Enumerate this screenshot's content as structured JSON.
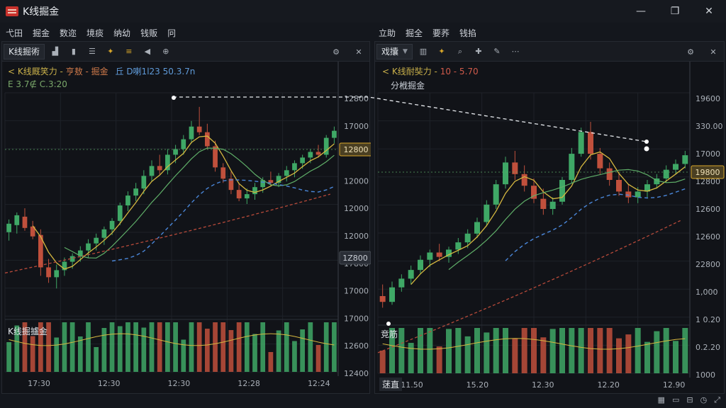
{
  "window": {
    "title": "K线掘金",
    "minimize": "—",
    "maximize": "❐",
    "close": "✕"
  },
  "menu_left": [
    "弋田",
    "掘金",
    "数迩",
    "境痰",
    "纳幼",
    "钱贩",
    "冋"
  ],
  "menu_right": [
    "立助",
    "掘全",
    "要荞",
    "钱掐"
  ],
  "left_panel": {
    "tab_label": "K线掘術",
    "legend_title": "< K线厩笑力 - ",
    "legend_mid": "亨敖 - 掘金",
    "legend_vals": "丘 D喇1l23 50.3.7n",
    "legend_sub": "E 3.7∉ C.3:20",
    "volume_label": "K线掘攎金",
    "price_ticks": [
      "12800",
      "17000",
      "12800",
      "12000",
      "12000",
      "12000",
      "17800",
      "17000",
      "17000",
      "12600",
      "12400"
    ],
    "current_price_tag": "12800",
    "marker_tag": "1Z800",
    "time_ticks": [
      "17:30",
      "12:30",
      "12:30",
      "12:28",
      "12:24"
    ]
  },
  "right_panel": {
    "tab_label": "戏攮",
    "legend_title": "< K线耐奘力 - ",
    "legend_vals": "10 - 5.70",
    "legend_sub": "分栰掘金",
    "volume_label": "竞筋",
    "price_ticks": [
      "19600",
      "330.00",
      "17000",
      "12800",
      "12600",
      "12600",
      "22800",
      "1,000",
      "1 0.20",
      "0.2.20",
      "1000"
    ],
    "current_price_tag": "19800",
    "time_ticks": [
      "11.50",
      "15.20",
      "12.30",
      "12.20",
      "12.90"
    ],
    "bottom_label": "蒁直"
  },
  "colors": {
    "up": "#3fa866",
    "down": "#c0503c",
    "ma_yellow": "#d6b840",
    "ma_green": "#5fae68",
    "ma_blue": "#4a86d8",
    "ma_red": "#b84a3a",
    "accent": "#d9a72a",
    "tag_bg": "#3a3a2a"
  },
  "chart_data": [
    {
      "type": "candlestick",
      "title": "K线厩笑力",
      "ylim": [
        11600,
        13200
      ],
      "candles": [
        {
          "o": 12210,
          "h": 12300,
          "l": 12150,
          "c": 12270
        },
        {
          "o": 12260,
          "h": 12350,
          "l": 12200,
          "c": 12330
        },
        {
          "o": 12320,
          "h": 12380,
          "l": 12220,
          "c": 12240
        },
        {
          "o": 12250,
          "h": 12290,
          "l": 12160,
          "c": 12180
        },
        {
          "o": 12190,
          "h": 12230,
          "l": 11900,
          "c": 11960
        },
        {
          "o": 11960,
          "h": 12020,
          "l": 11850,
          "c": 11890
        },
        {
          "o": 11890,
          "h": 11980,
          "l": 11810,
          "c": 11940
        },
        {
          "o": 11940,
          "h": 12030,
          "l": 11900,
          "c": 12000
        },
        {
          "o": 12000,
          "h": 12060,
          "l": 11950,
          "c": 12040
        },
        {
          "o": 12040,
          "h": 12110,
          "l": 12000,
          "c": 12080
        },
        {
          "o": 12080,
          "h": 12160,
          "l": 12030,
          "c": 12130
        },
        {
          "o": 12130,
          "h": 12200,
          "l": 12080,
          "c": 12170
        },
        {
          "o": 12170,
          "h": 12250,
          "l": 12120,
          "c": 12230
        },
        {
          "o": 12230,
          "h": 12310,
          "l": 12190,
          "c": 12290
        },
        {
          "o": 12290,
          "h": 12420,
          "l": 12260,
          "c": 12400
        },
        {
          "o": 12400,
          "h": 12500,
          "l": 12360,
          "c": 12470
        },
        {
          "o": 12470,
          "h": 12560,
          "l": 12430,
          "c": 12520
        },
        {
          "o": 12520,
          "h": 12650,
          "l": 12480,
          "c": 12610
        },
        {
          "o": 12610,
          "h": 12720,
          "l": 12570,
          "c": 12680
        },
        {
          "o": 12680,
          "h": 12760,
          "l": 12620,
          "c": 12650
        },
        {
          "o": 12650,
          "h": 12800,
          "l": 12620,
          "c": 12760
        },
        {
          "o": 12760,
          "h": 12830,
          "l": 12700,
          "c": 12800
        },
        {
          "o": 12800,
          "h": 12900,
          "l": 12760,
          "c": 12870
        },
        {
          "o": 12870,
          "h": 13000,
          "l": 12840,
          "c": 12960
        },
        {
          "o": 12960,
          "h": 13100,
          "l": 12900,
          "c": 12920
        },
        {
          "o": 12920,
          "h": 12980,
          "l": 12800,
          "c": 12820
        },
        {
          "o": 12820,
          "h": 12860,
          "l": 12640,
          "c": 12670
        },
        {
          "o": 12670,
          "h": 12700,
          "l": 12560,
          "c": 12590
        },
        {
          "o": 12590,
          "h": 12640,
          "l": 12480,
          "c": 12510
        },
        {
          "o": 12510,
          "h": 12560,
          "l": 12430,
          "c": 12450
        },
        {
          "o": 12450,
          "h": 12520,
          "l": 12410,
          "c": 12480
        },
        {
          "o": 12480,
          "h": 12560,
          "l": 12440,
          "c": 12530
        },
        {
          "o": 12530,
          "h": 12600,
          "l": 12490,
          "c": 12580
        },
        {
          "o": 12580,
          "h": 12640,
          "l": 12540,
          "c": 12560
        },
        {
          "o": 12560,
          "h": 12630,
          "l": 12530,
          "c": 12610
        },
        {
          "o": 12610,
          "h": 12680,
          "l": 12570,
          "c": 12650
        },
        {
          "o": 12650,
          "h": 12720,
          "l": 12600,
          "c": 12700
        },
        {
          "o": 12700,
          "h": 12760,
          "l": 12660,
          "c": 12740
        },
        {
          "o": 12740,
          "h": 12800,
          "l": 12700,
          "c": 12780
        },
        {
          "o": 12780,
          "h": 12830,
          "l": 12740,
          "c": 12760
        },
        {
          "o": 12760,
          "h": 12900,
          "l": 12740,
          "c": 12880
        },
        {
          "o": 12880,
          "h": 12960,
          "l": 12840,
          "c": 12930
        }
      ]
    },
    {
      "type": "candlestick",
      "title": "K线耐奘力",
      "ylim": [
        11600,
        13200
      ],
      "candles": [
        {
          "o": 11800,
          "h": 11880,
          "l": 11720,
          "c": 11760
        },
        {
          "o": 11760,
          "h": 11900,
          "l": 11740,
          "c": 11860
        },
        {
          "o": 11860,
          "h": 11950,
          "l": 11830,
          "c": 11920
        },
        {
          "o": 11920,
          "h": 12010,
          "l": 11880,
          "c": 11980
        },
        {
          "o": 11980,
          "h": 12080,
          "l": 11950,
          "c": 12050
        },
        {
          "o": 12050,
          "h": 12120,
          "l": 12000,
          "c": 12100
        },
        {
          "o": 12100,
          "h": 12160,
          "l": 12040,
          "c": 12070
        },
        {
          "o": 12070,
          "h": 12140,
          "l": 12030,
          "c": 12120
        },
        {
          "o": 12120,
          "h": 12200,
          "l": 12090,
          "c": 12170
        },
        {
          "o": 12170,
          "h": 12260,
          "l": 12130,
          "c": 12230
        },
        {
          "o": 12230,
          "h": 12340,
          "l": 12200,
          "c": 12310
        },
        {
          "o": 12310,
          "h": 12460,
          "l": 12280,
          "c": 12430
        },
        {
          "o": 12430,
          "h": 12600,
          "l": 12400,
          "c": 12570
        },
        {
          "o": 12570,
          "h": 12760,
          "l": 12540,
          "c": 12720
        },
        {
          "o": 12720,
          "h": 12800,
          "l": 12600,
          "c": 12640
        },
        {
          "o": 12640,
          "h": 12700,
          "l": 12520,
          "c": 12560
        },
        {
          "o": 12560,
          "h": 12610,
          "l": 12440,
          "c": 12470
        },
        {
          "o": 12470,
          "h": 12540,
          "l": 12360,
          "c": 12400
        },
        {
          "o": 12400,
          "h": 12480,
          "l": 12360,
          "c": 12450
        },
        {
          "o": 12450,
          "h": 12620,
          "l": 12430,
          "c": 12600
        },
        {
          "o": 12600,
          "h": 12820,
          "l": 12580,
          "c": 12780
        },
        {
          "o": 12780,
          "h": 12960,
          "l": 12760,
          "c": 12930
        },
        {
          "o": 12930,
          "h": 13000,
          "l": 12740,
          "c": 12780
        },
        {
          "o": 12780,
          "h": 12820,
          "l": 12640,
          "c": 12680
        },
        {
          "o": 12680,
          "h": 12720,
          "l": 12560,
          "c": 12600
        },
        {
          "o": 12600,
          "h": 12640,
          "l": 12490,
          "c": 12520
        },
        {
          "o": 12520,
          "h": 12570,
          "l": 12440,
          "c": 12480
        },
        {
          "o": 12480,
          "h": 12550,
          "l": 12440,
          "c": 12520
        },
        {
          "o": 12520,
          "h": 12600,
          "l": 12480,
          "c": 12570
        },
        {
          "o": 12570,
          "h": 12640,
          "l": 12540,
          "c": 12610
        },
        {
          "o": 12610,
          "h": 12700,
          "l": 12580,
          "c": 12670
        },
        {
          "o": 12670,
          "h": 12740,
          "l": 12640,
          "c": 12710
        },
        {
          "o": 12710,
          "h": 12800,
          "l": 12680,
          "c": 12770
        }
      ]
    }
  ]
}
